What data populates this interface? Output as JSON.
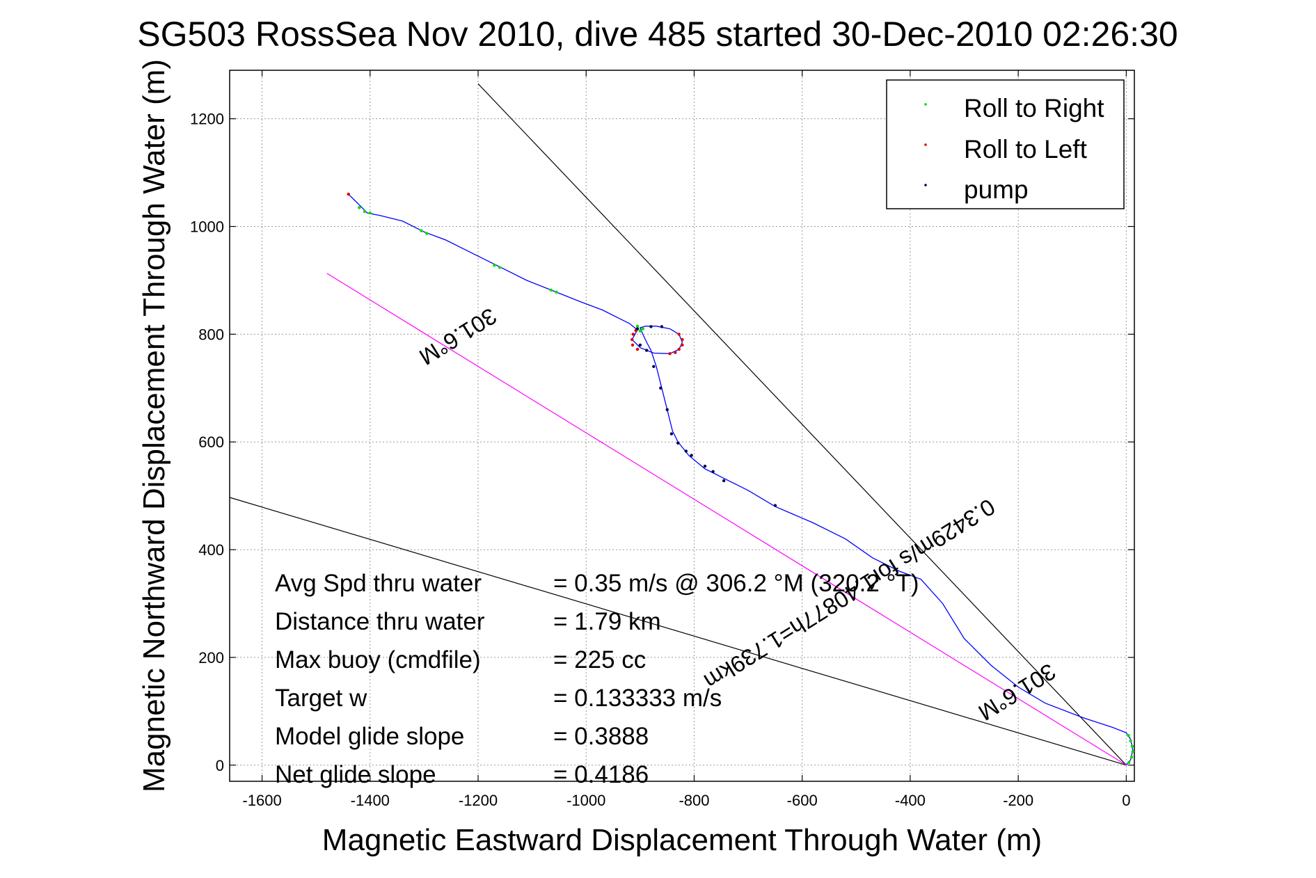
{
  "chart_data": {
    "type": "line",
    "title": "SG503 RossSea Nov 2010, dive 485 started 30-Dec-2010 02:26:30",
    "xlabel": "Magnetic Eastward Displacement Through Water (m)",
    "ylabel": "Magnetic Northward Displacement Through Water (m)",
    "xlim": [
      -1660,
      15
    ],
    "ylim": [
      -30,
      1290
    ],
    "xticks": [
      -1600,
      -1400,
      -1200,
      -1000,
      -800,
      -600,
      -400,
      -200,
      0
    ],
    "yticks": [
      0,
      200,
      400,
      600,
      800,
      1000,
      1200
    ],
    "grid": true,
    "legend": {
      "position": "top-right",
      "entries": [
        {
          "label": "Roll to Right",
          "color": "#00dd00"
        },
        {
          "label": "Roll to Left",
          "color": "#dd0000"
        },
        {
          "label": "pump",
          "color": "#000055"
        }
      ]
    },
    "track_color": "#0000ff",
    "track": [
      [
        0,
        0
      ],
      [
        8,
        10
      ],
      [
        12,
        28
      ],
      [
        8,
        48
      ],
      [
        0,
        60
      ],
      [
        -25,
        70
      ],
      [
        -80,
        88
      ],
      [
        -150,
        115
      ],
      [
        -200,
        145
      ],
      [
        -250,
        185
      ],
      [
        -300,
        235
      ],
      [
        -340,
        300
      ],
      [
        -380,
        345
      ],
      [
        -420,
        360
      ],
      [
        -470,
        385
      ],
      [
        -520,
        420
      ],
      [
        -580,
        450
      ],
      [
        -650,
        480
      ],
      [
        -700,
        510
      ],
      [
        -740,
        530
      ],
      [
        -780,
        550
      ],
      [
        -810,
        575
      ],
      [
        -830,
        600
      ],
      [
        -840,
        620
      ],
      [
        -850,
        660
      ],
      [
        -860,
        700
      ],
      [
        -870,
        740
      ],
      [
        -880,
        770
      ],
      [
        -888,
        785
      ],
      [
        -895,
        800
      ],
      [
        -900,
        812
      ],
      [
        -890,
        815
      ],
      [
        -870,
        815
      ],
      [
        -845,
        810
      ],
      [
        -828,
        800
      ],
      [
        -822,
        785
      ],
      [
        -828,
        772
      ],
      [
        -845,
        764
      ],
      [
        -875,
        765
      ],
      [
        -900,
        775
      ],
      [
        -915,
        790
      ],
      [
        -905,
        808
      ],
      [
        -920,
        820
      ],
      [
        -940,
        830
      ],
      [
        -970,
        845
      ],
      [
        -1010,
        860
      ],
      [
        -1060,
        880
      ],
      [
        -1110,
        900
      ],
      [
        -1160,
        925
      ],
      [
        -1220,
        955
      ],
      [
        -1260,
        975
      ],
      [
        -1300,
        990
      ],
      [
        -1340,
        1010
      ],
      [
        -1380,
        1020
      ],
      [
        -1405,
        1025
      ],
      [
        -1420,
        1040
      ],
      [
        -1440,
        1060
      ]
    ],
    "roll_right": [
      [
        -1420,
        1035
      ],
      [
        -1410,
        1028
      ],
      [
        -1400,
        1025
      ],
      [
        -1305,
        992
      ],
      [
        -1295,
        987
      ],
      [
        -1170,
        928
      ],
      [
        -1160,
        924
      ],
      [
        -1065,
        882
      ],
      [
        -1055,
        878
      ],
      [
        -905,
        815
      ],
      [
        -900,
        806
      ],
      [
        -895,
        810
      ],
      [
        5,
        5
      ],
      [
        10,
        15
      ],
      [
        12,
        25
      ],
      [
        11,
        35
      ],
      [
        8,
        45
      ],
      [
        4,
        55
      ]
    ],
    "roll_left": [
      [
        -1440,
        1060
      ],
      [
        -915,
        790
      ],
      [
        -913,
        800
      ],
      [
        -908,
        807
      ],
      [
        -914,
        780
      ],
      [
        -905,
        772
      ],
      [
        -828,
        800
      ],
      [
        -822,
        790
      ],
      [
        -822,
        780
      ],
      [
        -828,
        772
      ],
      [
        -835,
        766
      ],
      [
        -845,
        764
      ]
    ],
    "pump": [
      [
        -900,
        780
      ],
      [
        -888,
        770
      ],
      [
        -875,
        740
      ],
      [
        -862,
        700
      ],
      [
        -850,
        660
      ],
      [
        -842,
        615
      ],
      [
        -830,
        598
      ],
      [
        -815,
        583
      ],
      [
        -805,
        575
      ],
      [
        -780,
        555
      ],
      [
        -765,
        545
      ],
      [
        -745,
        528
      ],
      [
        -650,
        482
      ],
      [
        -905,
        810
      ],
      [
        -880,
        814
      ],
      [
        -860,
        814
      ]
    ],
    "lines": [
      {
        "name": "current-bound-line-upper",
        "color": "#000000",
        "points": [
          [
            0,
            0
          ],
          [
            -1200,
            1265
          ]
        ]
      },
      {
        "name": "current-bound-line-lower",
        "color": "#000000",
        "points": [
          [
            0,
            0
          ],
          [
            -1660,
            497
          ]
        ]
      },
      {
        "name": "heading-line",
        "color": "#ff00ff",
        "points": [
          [
            0,
            0
          ],
          [
            -1480,
            913
          ]
        ]
      }
    ],
    "annotations": [
      {
        "name": "annot-heading-upper",
        "text": "301.6°M",
        "x": -1245,
        "y": 808,
        "rotate": 148
      },
      {
        "name": "annot-distance",
        "text": "0.3429m/s for1.40877h=1.739km",
        "x": -520,
        "y": 330,
        "rotate": 148
      },
      {
        "name": "annot-heading-lower",
        "text": "301.6°M",
        "x": -210,
        "y": 148,
        "rotate": 148
      }
    ],
    "stats": [
      {
        "label": "Avg Spd thru water",
        "value": "=  0.35 m/s @ 306.2 °M (320.2 °T)"
      },
      {
        "label": "Distance thru water",
        "value": "=  1.79 km"
      },
      {
        "label": "Max buoy (cmdfile)",
        "value": "= 225 cc"
      },
      {
        "label": "Target w",
        "value": "= 0.133333 m/s"
      },
      {
        "label": "Model glide slope",
        "value": "= 0.3888"
      },
      {
        "label": "Net glide slope",
        "value": "= 0.4186"
      }
    ]
  }
}
